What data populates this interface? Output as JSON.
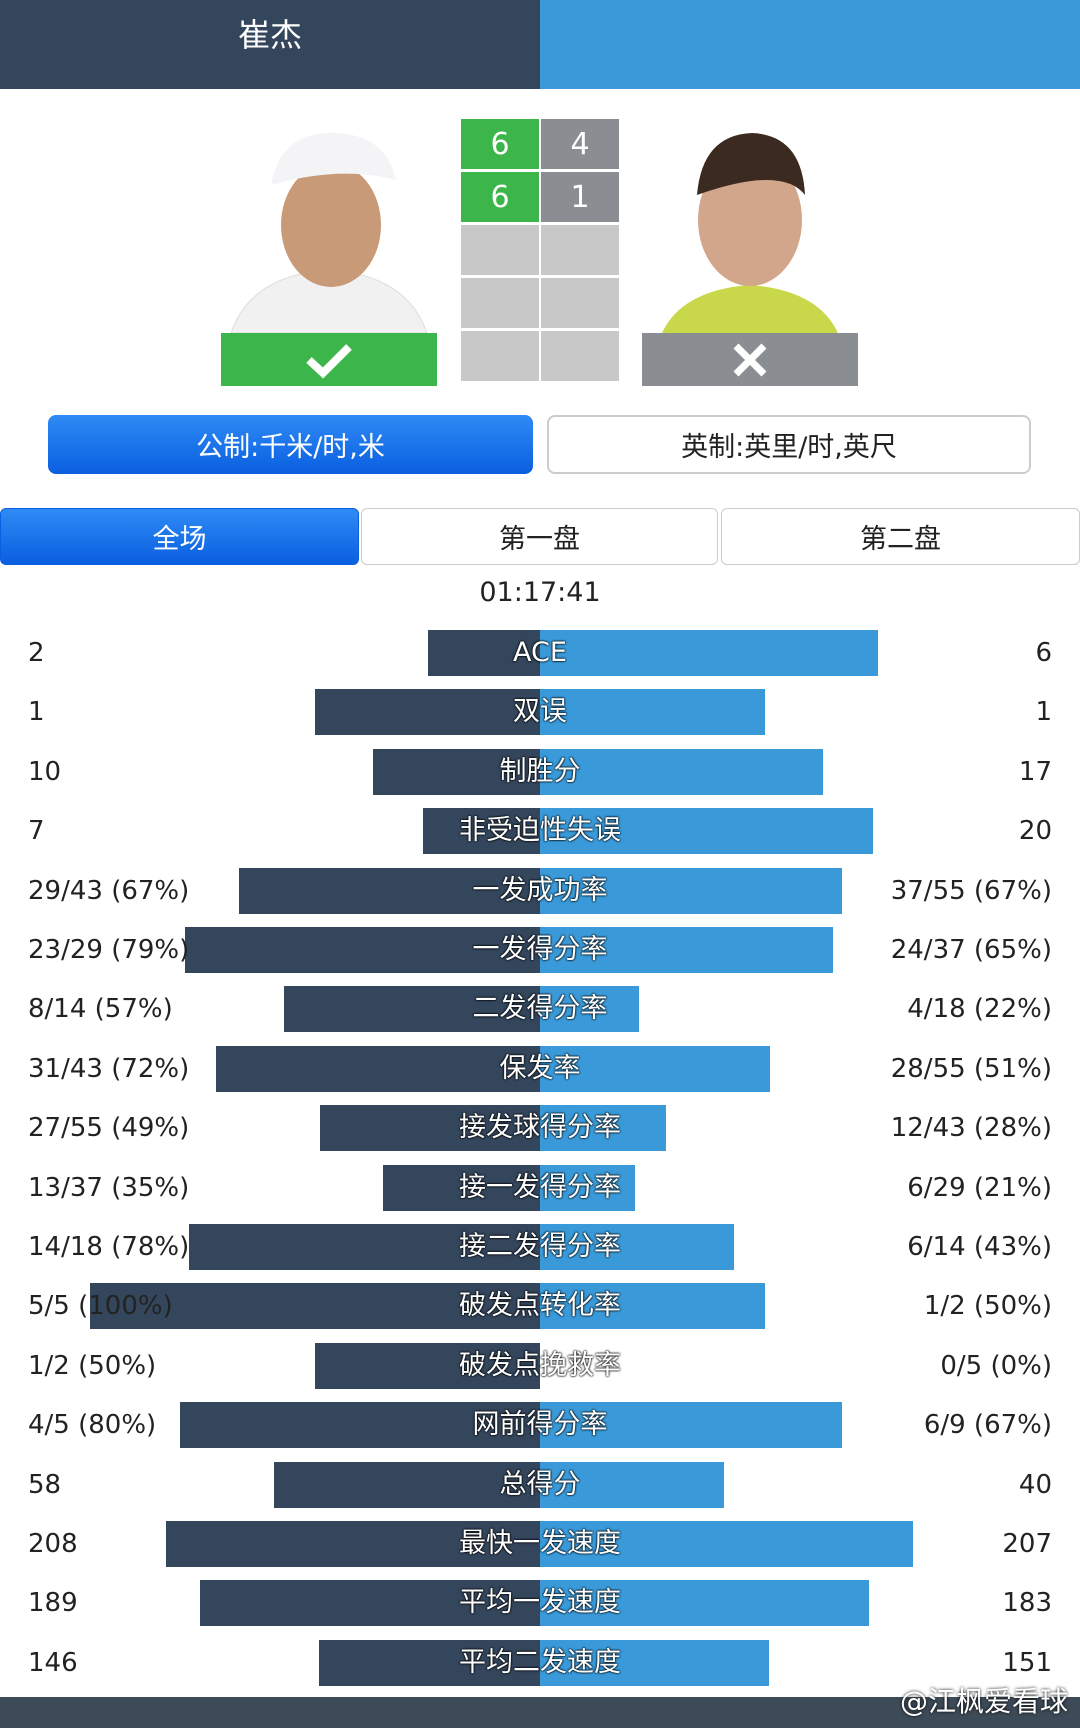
{
  "header": {
    "player_left": "崔杰"
  },
  "score": {
    "sets": [
      [
        "6",
        "4"
      ],
      [
        "6",
        "1"
      ]
    ]
  },
  "units": {
    "metric": "公制:千米/时,米",
    "imperial": "英制:英里/时,英尺"
  },
  "tabs": [
    "全场",
    "第一盘",
    "第二盘"
  ],
  "duration": "01:17:41",
  "stats": [
    {
      "label": "ACE",
      "left": "2",
      "right": "6"
    },
    {
      "label": "双误",
      "left": "1",
      "right": "1"
    },
    {
      "label": "制胜分",
      "left": "10",
      "right": "17"
    },
    {
      "label": "非受迫性失误",
      "left": "7",
      "right": "20"
    },
    {
      "label": "一发成功率",
      "left": "29/43 (67%)",
      "right": "37/55 (67%)"
    },
    {
      "label": "一发得分率",
      "left": "23/29 (79%)",
      "right": "24/37 (65%)"
    },
    {
      "label": "二发得分率",
      "left": "8/14 (57%)",
      "right": "4/18 (22%)"
    },
    {
      "label": "保发率",
      "left": "31/43 (72%)",
      "right": "28/55 (51%)"
    },
    {
      "label": "接发球得分率",
      "left": "27/55 (49%)",
      "right": "12/43 (28%)"
    },
    {
      "label": "接一发得分率",
      "left": "13/37 (35%)",
      "right": "6/29 (21%)"
    },
    {
      "label": "接二发得分率",
      "left": "14/18 (78%)",
      "right": "6/14 (43%)"
    },
    {
      "label": "破发点转化率",
      "left": "5/5 (100%)",
      "right": "1/2 (50%)"
    },
    {
      "label": "破发点挽救率",
      "left": "1/2 (50%)",
      "right": "0/5 (0%)"
    },
    {
      "label": "网前得分率",
      "left": "4/5 (80%)",
      "right": "6/9 (67%)"
    },
    {
      "label": "总得分",
      "left": "58",
      "right": "40"
    },
    {
      "label": "最快一发速度",
      "left": "208",
      "right": "207"
    },
    {
      "label": "平均一发速度",
      "left": "189",
      "right": "183"
    },
    {
      "label": "平均二发速度",
      "left": "146",
      "right": "151"
    }
  ],
  "watermark": "@江枫爱看球"
}
